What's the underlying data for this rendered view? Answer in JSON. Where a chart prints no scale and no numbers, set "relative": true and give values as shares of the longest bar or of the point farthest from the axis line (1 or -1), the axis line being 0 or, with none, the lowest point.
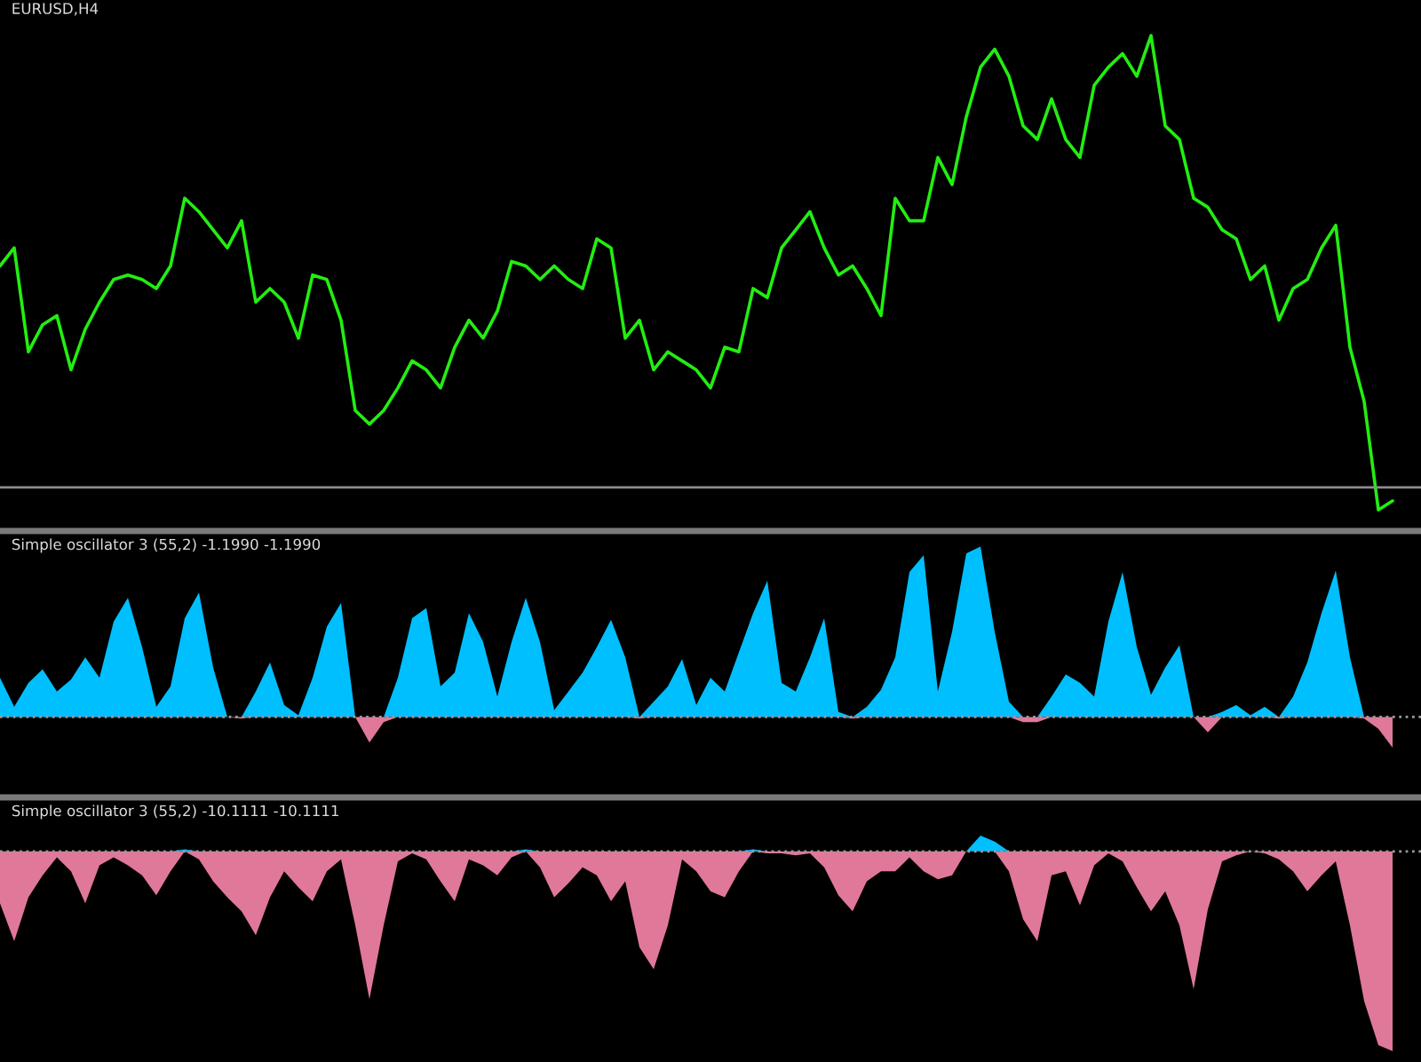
{
  "chart_data": [
    {
      "type": "line",
      "title": "EURUSD,H4",
      "relative": true,
      "categories": [
        null,
        null,
        null,
        null,
        null,
        null,
        null,
        null,
        null,
        null,
        null,
        null,
        null,
        null,
        null,
        null,
        null,
        null,
        null,
        null,
        null,
        null,
        null,
        null,
        null,
        null,
        null,
        null,
        null,
        null,
        null,
        null,
        null,
        null,
        null,
        null,
        null,
        null,
        null,
        null,
        null,
        null,
        null,
        null,
        null,
        null,
        null,
        null,
        null,
        null,
        null,
        null,
        null,
        null,
        null,
        null,
        null,
        null,
        null,
        null,
        null,
        null,
        null,
        null,
        null,
        null,
        null,
        null,
        null,
        null,
        null,
        null,
        null,
        null,
        null,
        null,
        null,
        null,
        null,
        null,
        null,
        null,
        null,
        null,
        null,
        null,
        null,
        null,
        null,
        null,
        null,
        null,
        null,
        null,
        null,
        null,
        null,
        null,
        null
      ],
      "series": [
        {
          "color": "#22ee11",
          "values": [
            0.49,
            0.53,
            0.3,
            0.36,
            0.38,
            0.26,
            0.35,
            0.41,
            0.46,
            0.47,
            0.46,
            0.44,
            0.49,
            0.64,
            0.61,
            0.57,
            0.53,
            0.59,
            0.41,
            0.44,
            0.41,
            0.33,
            0.47,
            0.46,
            0.37,
            0.17,
            0.14,
            0.17,
            0.22,
            0.28,
            0.26,
            0.22,
            0.31,
            0.37,
            0.33,
            0.39,
            0.5,
            0.49,
            0.46,
            0.49,
            0.46,
            0.44,
            0.55,
            0.53,
            0.33,
            0.37,
            0.26,
            0.3,
            0.28,
            0.26,
            0.22,
            0.31,
            0.3,
            0.44,
            0.42,
            0.53,
            0.57,
            0.61,
            0.53,
            0.47,
            0.49,
            0.44,
            0.38,
            0.64,
            0.59,
            0.59,
            0.73,
            0.67,
            0.82,
            0.93,
            0.97,
            0.91,
            0.8,
            0.77,
            0.86,
            0.77,
            0.73,
            0.89,
            0.93,
            0.96,
            0.91,
            1.0,
            0.8,
            0.77,
            0.64,
            0.62,
            0.57,
            0.55,
            0.46,
            0.49,
            0.37,
            0.44,
            0.46,
            0.53,
            0.58,
            0.31,
            0.19,
            -0.05,
            -0.03
          ]
        }
      ],
      "ref_lines": [
        {
          "axis": "y",
          "value": 0,
          "color": "#8c8c8c",
          "line_style": "solid"
        }
      ]
    },
    {
      "type": "area",
      "title": "Simple oscillator 3 (55,2) -1.1990 -1.1990",
      "relative": true,
      "categories": [
        null,
        null,
        null,
        null,
        null,
        null,
        null,
        null,
        null,
        null,
        null,
        null,
        null,
        null,
        null,
        null,
        null,
        null,
        null,
        null,
        null,
        null,
        null,
        null,
        null,
        null,
        null,
        null,
        null,
        null,
        null,
        null,
        null,
        null,
        null,
        null,
        null,
        null,
        null,
        null,
        null,
        null,
        null,
        null,
        null,
        null,
        null,
        null,
        null,
        null,
        null,
        null,
        null,
        null,
        null,
        null,
        null,
        null,
        null,
        null,
        null,
        null,
        null,
        null,
        null,
        null,
        null,
        null,
        null,
        null,
        null,
        null,
        null,
        null,
        null,
        null,
        null,
        null,
        null,
        null,
        null,
        null,
        null,
        null,
        null,
        null,
        null,
        null,
        null,
        null,
        null,
        null,
        null,
        null,
        null,
        null,
        null,
        null,
        null
      ],
      "series": [
        {
          "color": "#00bfff",
          "values": [
            0.23,
            0.06,
            0.2,
            0.28,
            0.15,
            0.22,
            0.35,
            0.23,
            0.56,
            0.7,
            0.41,
            0.06,
            0.18,
            0.58,
            0.73,
            0.29,
            0,
            0,
            0.15,
            0.32,
            0.07,
            0.01,
            0.23,
            0.53,
            0.67,
            0,
            0,
            0,
            0.23,
            0.58,
            0.64,
            0.18,
            0.26,
            0.61,
            0.44,
            0.12,
            0.44,
            0.7,
            0.44,
            0.04,
            0.15,
            0.26,
            0.41,
            0.57,
            0.35,
            0,
            0.09,
            0.18,
            0.34,
            0.07,
            0.23,
            0.15,
            0.38,
            0.61,
            0.8,
            0.2,
            0.15,
            0.35,
            0.58,
            0.03,
            0,
            0.06,
            0.16,
            0.35,
            0.85,
            0.95,
            0.15,
            0.5,
            0.96,
            1.0,
            0.5,
            0.09,
            0,
            0,
            0.12,
            0.25,
            0.2,
            0.12,
            0.56,
            0.85,
            0.41,
            0.13,
            0.29,
            0.42,
            0,
            0,
            0.03,
            0.07,
            0.01,
            0.06,
            0,
            0.12,
            0.32,
            0.61,
            0.86,
            0.35,
            0,
            0,
            0
          ]
        },
        {
          "color": "#e0789a",
          "values": [
            0,
            0,
            0,
            0,
            0,
            0,
            0,
            0,
            0,
            0,
            0,
            0,
            0,
            0,
            0,
            0,
            0,
            -0.01,
            0,
            0,
            0,
            0,
            0,
            0,
            0,
            0,
            -0.15,
            -0.03,
            0,
            0,
            0,
            0,
            0,
            0,
            0,
            0,
            0,
            0,
            0,
            0,
            0,
            0,
            0,
            0,
            0,
            -0.01,
            0,
            0,
            0,
            0,
            0,
            0,
            0,
            0,
            0,
            0,
            0,
            0,
            0,
            0,
            -0.01,
            0,
            0,
            0,
            0,
            0,
            0,
            0,
            0,
            0,
            0,
            0,
            -0.03,
            -0.03,
            0,
            0,
            0,
            0,
            0,
            0,
            0,
            0,
            0,
            0,
            0,
            -0.09,
            0,
            0,
            0,
            0,
            -0.01,
            0,
            0,
            0,
            0,
            0,
            -0.01,
            -0.07,
            -0.18
          ]
        }
      ],
      "ref_lines": [
        {
          "axis": "y",
          "value": 0,
          "color": "#9a9a9a",
          "line_style": "dotted"
        }
      ]
    },
    {
      "type": "area",
      "title": "Simple oscillator 3 (55,2) -10.1111 -10.1111",
      "relative": true,
      "categories": [
        null,
        null,
        null,
        null,
        null,
        null,
        null,
        null,
        null,
        null,
        null,
        null,
        null,
        null,
        null,
        null,
        null,
        null,
        null,
        null,
        null,
        null,
        null,
        null,
        null,
        null,
        null,
        null,
        null,
        null,
        null,
        null,
        null,
        null,
        null,
        null,
        null,
        null,
        null,
        null,
        null,
        null,
        null,
        null,
        null,
        null,
        null,
        null,
        null,
        null,
        null,
        null,
        null,
        null,
        null,
        null,
        null,
        null,
        null,
        null,
        null,
        null,
        null,
        null,
        null,
        null,
        null,
        null,
        null,
        null,
        null,
        null,
        null,
        null,
        null,
        null,
        null,
        null,
        null,
        null,
        null,
        null,
        null,
        null,
        null,
        null,
        null,
        null,
        null,
        null,
        null,
        null,
        null,
        null,
        null,
        null,
        null,
        null,
        null
      ],
      "series": [
        {
          "color": "#00bfff",
          "values": [
            0,
            0,
            0,
            0,
            0,
            0,
            0,
            0,
            0,
            0,
            0,
            0,
            0,
            0.01,
            0,
            0,
            0,
            0,
            0,
            0,
            0,
            0,
            0,
            0,
            0,
            0,
            0,
            0,
            0,
            0,
            0,
            0,
            0,
            0,
            0,
            0,
            0,
            0.01,
            0,
            0,
            0,
            0,
            0,
            0,
            0,
            0,
            0,
            0,
            0,
            0,
            0,
            0,
            0,
            0.01,
            0,
            0,
            0,
            0,
            0,
            0,
            0,
            0,
            0,
            0,
            0,
            0,
            0,
            0,
            0,
            0.08,
            0.05,
            0,
            0,
            0,
            0,
            0,
            0,
            0,
            0,
            0,
            0,
            0,
            0,
            0,
            0,
            0,
            0,
            0,
            0,
            0,
            0,
            0,
            0,
            0,
            0,
            0,
            0,
            0,
            0
          ]
        },
        {
          "color": "#e0789a",
          "values": [
            -0.26,
            -0.45,
            -0.23,
            -0.12,
            -0.03,
            -0.1,
            -0.26,
            -0.07,
            -0.03,
            -0.07,
            -0.12,
            -0.22,
            -0.1,
            0,
            -0.04,
            -0.15,
            -0.23,
            -0.3,
            -0.42,
            -0.23,
            -0.1,
            -0.18,
            -0.25,
            -0.1,
            -0.04,
            -0.37,
            -0.74,
            -0.37,
            -0.05,
            -0.01,
            -0.04,
            -0.15,
            -0.25,
            -0.04,
            -0.07,
            -0.12,
            -0.03,
            0,
            -0.08,
            -0.23,
            -0.16,
            -0.08,
            -0.12,
            -0.25,
            -0.15,
            -0.48,
            -0.59,
            -0.37,
            -0.04,
            -0.1,
            -0.2,
            -0.23,
            -0.1,
            0,
            -0.01,
            -0.01,
            -0.02,
            -0.01,
            -0.08,
            -0.22,
            -0.3,
            -0.15,
            -0.1,
            -0.1,
            -0.03,
            -0.1,
            -0.14,
            -0.12,
            0,
            0,
            0,
            -0.1,
            -0.34,
            -0.45,
            -0.12,
            -0.1,
            -0.27,
            -0.07,
            -0.01,
            -0.05,
            -0.18,
            -0.3,
            -0.2,
            -0.37,
            -0.69,
            -0.29,
            -0.05,
            -0.02,
            0,
            -0.01,
            -0.04,
            -0.1,
            -0.2,
            -0.12,
            -0.05,
            -0.37,
            -0.75,
            -0.97,
            -1.0
          ]
        }
      ],
      "ref_lines": [
        {
          "axis": "y",
          "value": 0,
          "color": "#9a9a9a",
          "line_style": "dotted"
        }
      ]
    }
  ]
}
